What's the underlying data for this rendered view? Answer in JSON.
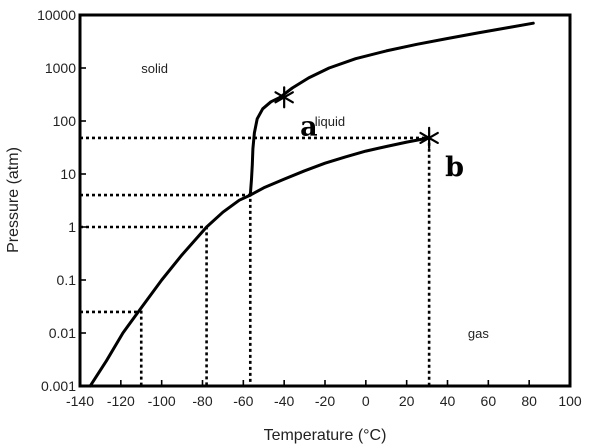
{
  "chart_data": {
    "type": "line",
    "title": "",
    "xlabel": "Temperature (°C)",
    "ylabel": "Pressure (atm)",
    "xlim": [
      -140,
      100
    ],
    "ylim": [
      0.001,
      10000
    ],
    "yscale": "log",
    "grid": false,
    "x_ticks": [
      -140,
      -120,
      -100,
      -80,
      -60,
      -40,
      -20,
      0,
      20,
      40,
      60,
      80,
      100
    ],
    "x_tick_labels": [
      "-140",
      "-120",
      "-100",
      "-80",
      "-60",
      "-40",
      "-20",
      "0",
      "20",
      "40",
      "60",
      "80",
      "100"
    ],
    "y_ticks": [
      0.001,
      0.01,
      0.1,
      1,
      10,
      100,
      1000,
      10000
    ],
    "y_tick_labels": [
      "0.001",
      "0.01",
      "0.1",
      "1",
      "10",
      "100",
      "1000",
      "10000"
    ],
    "series": [
      {
        "role": "sublimation-curve",
        "x": [
          -135,
          -127,
          -119,
          -110,
          -100,
          -90,
          -78,
          -70,
          -62,
          -56.6
        ],
        "y": [
          0.001,
          0.003,
          0.01,
          0.03,
          0.1,
          0.3,
          1,
          1.9,
          3.2,
          4
        ]
      },
      {
        "role": "vaporization-curve",
        "x": [
          -56.6,
          -50,
          -40,
          -30,
          -20,
          -10,
          0,
          10,
          20,
          31
        ],
        "y": [
          4,
          5.5,
          8,
          11.5,
          16,
          21,
          27,
          33,
          40,
          48
        ]
      },
      {
        "role": "melting-curve",
        "x": [
          -56.6,
          -56,
          -55.6,
          -55.3,
          -54.6,
          -53.2,
          -50.5,
          -46.5,
          -42
        ],
        "y": [
          4,
          8,
          15,
          30,
          60,
          110,
          170,
          230,
          280
        ]
      },
      {
        "role": "melting-curve-upper",
        "x": [
          -42,
          -36,
          -28,
          -18,
          -5,
          10,
          25,
          40,
          55,
          70,
          82
        ],
        "y": [
          280,
          420,
          650,
          1000,
          1500,
          2100,
          2800,
          3600,
          4600,
          5800,
          7000
        ]
      }
    ],
    "reference_lines": [
      {
        "x": -110,
        "y": 0.025
      },
      {
        "x": -78,
        "y": 1
      },
      {
        "x": -56.6,
        "y": 4
      },
      {
        "x": 31,
        "y": 48
      }
    ],
    "points": [
      {
        "label": "a",
        "x": -40,
        "y": 280
      },
      {
        "label": "b",
        "x": 31,
        "y": 48
      }
    ],
    "region_labels": [
      {
        "text": "solid",
        "x": -110,
        "y": 1000
      },
      {
        "text": "liquid",
        "x": -25,
        "y": 100
      },
      {
        "text": "gas",
        "x": 50,
        "y": 0.01
      }
    ]
  }
}
